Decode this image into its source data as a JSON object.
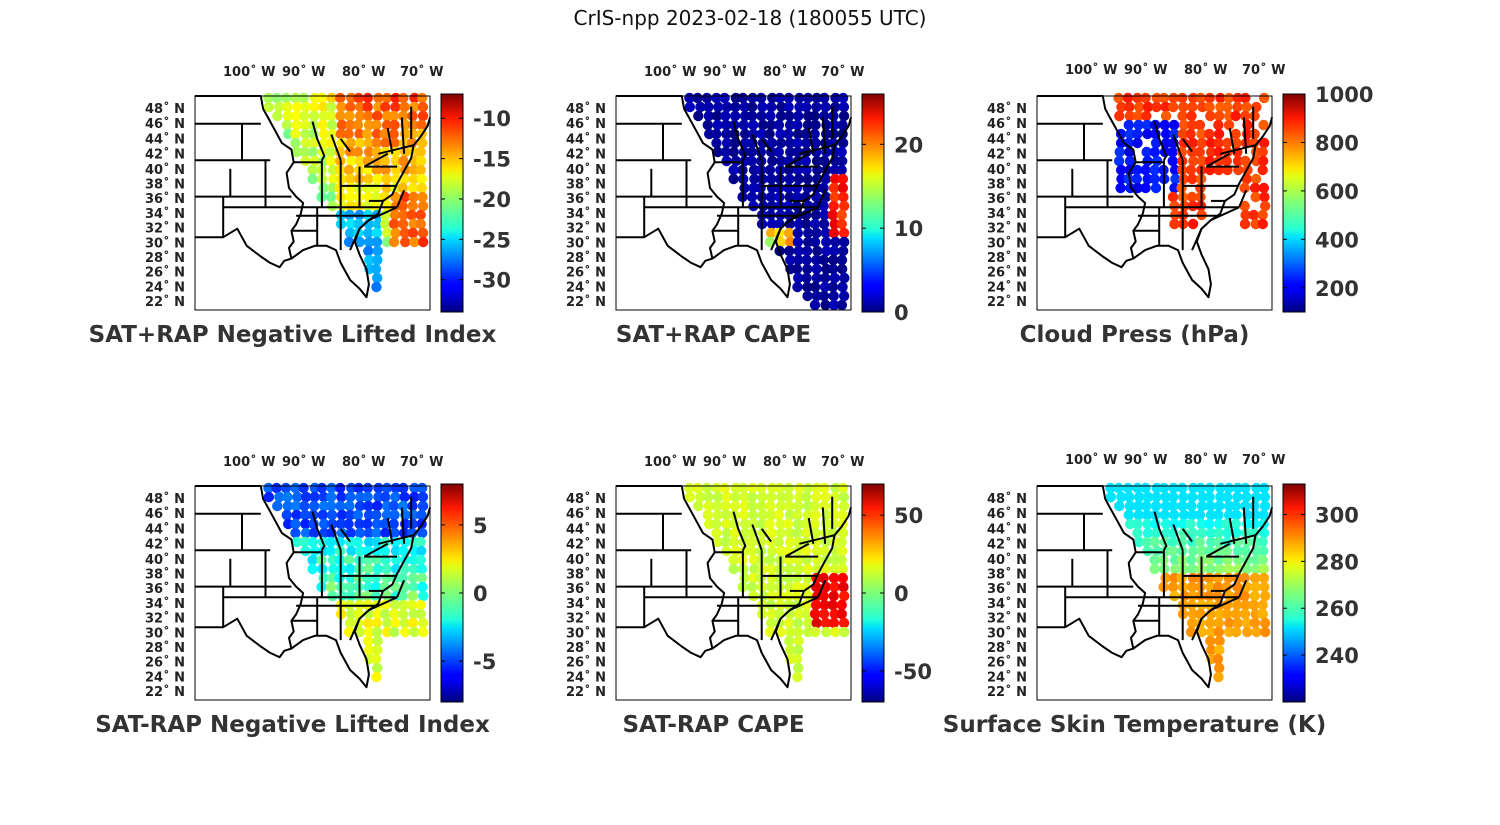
{
  "title": "CrIS-npp 2023-02-18 (180055 UTC)",
  "colors": {
    "border": "#000000",
    "background": "#ffffff",
    "text": "#222222"
  },
  "lon_ticks": [
    "100˚ W",
    "90˚ W",
    "80˚ W",
    "70˚ W"
  ],
  "lat_ticks": [
    "48˚ N",
    "46˚ N",
    "44˚ N",
    "42˚ N",
    "40˚ N",
    "38˚ N",
    "36˚ N",
    "34˚ N",
    "32˚ N",
    "30˚ N",
    "28˚ N",
    "26˚ N",
    "24˚ N",
    "22˚ N"
  ],
  "chart_data": [
    {
      "type": "heatmap",
      "title": "SAT+RAP Negative Lifted Index",
      "colormap": "jet",
      "colorbar_ticks": [
        "-10",
        "-15",
        "-20",
        "-25",
        "-30"
      ],
      "colorbar_values": [
        -10,
        -15,
        -20,
        -25,
        -30
      ],
      "clim": [
        -34,
        -7
      ],
      "lon_range": [
        -108,
        -67
      ],
      "lat_range": [
        22,
        49.5
      ]
    },
    {
      "type": "heatmap",
      "title": "SAT+RAP CAPE",
      "colormap": "jet",
      "colorbar_ticks": [
        "20",
        "10",
        "0"
      ],
      "colorbar_values": [
        20,
        10,
        0
      ],
      "clim": [
        0,
        26
      ],
      "lon_range": [
        -108,
        -67
      ],
      "lat_range": [
        22,
        49.5
      ]
    },
    {
      "type": "heatmap",
      "title": "Cloud Press (hPa)",
      "colormap": "jet",
      "colorbar_ticks": [
        "1000",
        "800",
        "600",
        "400",
        "200"
      ],
      "colorbar_values": [
        1000,
        800,
        600,
        400,
        200
      ],
      "clim": [
        100,
        1000
      ],
      "lon_range": [
        -108,
        -67
      ],
      "lat_range": [
        22,
        49.5
      ]
    },
    {
      "type": "heatmap",
      "title": "SAT-RAP Negative Lifted Index",
      "colormap": "jet",
      "colorbar_ticks": [
        "5",
        "0",
        "-5"
      ],
      "colorbar_values": [
        5,
        0,
        -5
      ],
      "clim": [
        -8,
        8
      ],
      "lon_range": [
        -108,
        -67
      ],
      "lat_range": [
        22,
        49.5
      ]
    },
    {
      "type": "heatmap",
      "title": "SAT-RAP CAPE",
      "colormap": "jet",
      "colorbar_ticks": [
        "50",
        "0",
        "-50"
      ],
      "colorbar_values": [
        50,
        0,
        -50
      ],
      "clim": [
        -70,
        70
      ],
      "lon_range": [
        -108,
        -67
      ],
      "lat_range": [
        22,
        49.5
      ]
    },
    {
      "type": "heatmap",
      "title": "Surface Skin Temperature (K)",
      "colormap": "jet",
      "colorbar_ticks": [
        "300",
        "280",
        "260",
        "240"
      ],
      "colorbar_values": [
        300,
        280,
        260,
        240
      ],
      "clim": [
        220,
        313
      ],
      "lon_range": [
        -108,
        -67
      ],
      "lat_range": [
        22,
        49.5
      ]
    }
  ]
}
